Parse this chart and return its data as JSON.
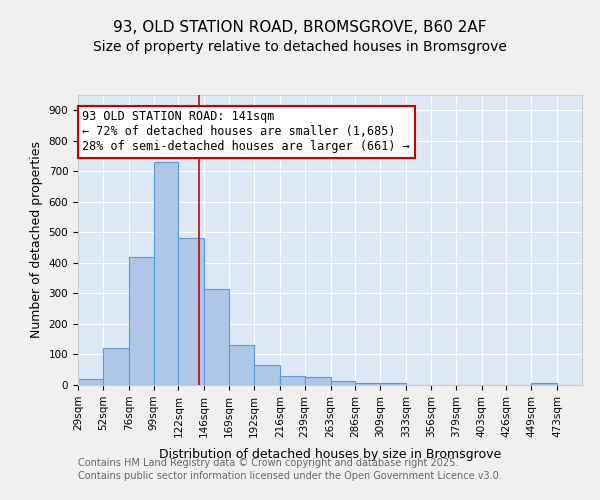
{
  "title1": "93, OLD STATION ROAD, BROMSGROVE, B60 2AF",
  "title2": "Size of property relative to detached houses in Bromsgrove",
  "xlabel": "Distribution of detached houses by size in Bromsgrove",
  "ylabel": "Number of detached properties",
  "bin_edges": [
    29,
    52,
    76,
    99,
    122,
    146,
    169,
    192,
    216,
    239,
    263,
    286,
    309,
    333,
    356,
    379,
    403,
    426,
    449,
    473,
    496
  ],
  "bar_heights": [
    20,
    120,
    420,
    730,
    480,
    315,
    130,
    65,
    30,
    25,
    12,
    8,
    8,
    0,
    0,
    0,
    0,
    0,
    8,
    0
  ],
  "bar_color": "#aec6e8",
  "bar_edge_color": "#5b9bd5",
  "vline_x": 141,
  "vline_color": "#cc0000",
  "annotation_text": "93 OLD STATION ROAD: 141sqm\n← 72% of detached houses are smaller (1,685)\n28% of semi-detached houses are larger (661) →",
  "annotation_box_color": "#ffffff",
  "annotation_box_edge_color": "#cc0000",
  "ylim": [
    0,
    950
  ],
  "yticks": [
    0,
    100,
    200,
    300,
    400,
    500,
    600,
    700,
    800,
    900
  ],
  "background_color": "#dce8f5",
  "footer_line1": "Contains HM Land Registry data © Crown copyright and database right 2025.",
  "footer_line2": "Contains public sector information licensed under the Open Government Licence v3.0.",
  "title_fontsize": 11,
  "subtitle_fontsize": 10,
  "tick_label_fontsize": 7.5,
  "axis_label_fontsize": 9,
  "annotation_fontsize": 8.5,
  "footer_fontsize": 7
}
